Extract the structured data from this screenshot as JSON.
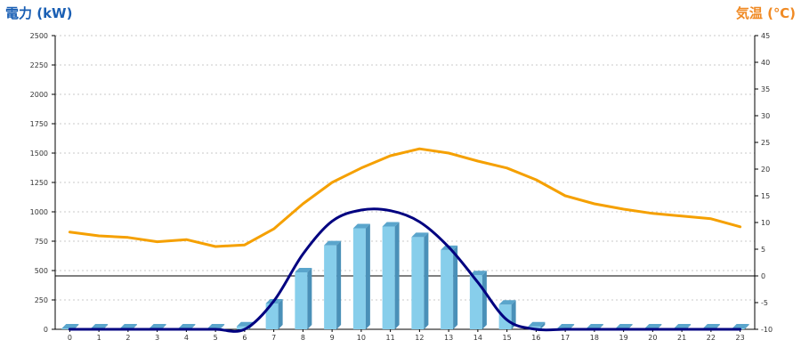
{
  "chart_data": {
    "type": "bar+line",
    "left_axis": {
      "title": "電力 (kW)",
      "title_color": "#1a5fb4",
      "ylim": [
        0,
        2500
      ],
      "ticks": [
        0,
        250,
        500,
        750,
        1000,
        1250,
        1500,
        1750,
        2000,
        2250,
        2500
      ]
    },
    "right_axis": {
      "title": "気温 (℃)",
      "title_color": "#f08a24",
      "ylim": [
        -10,
        45
      ],
      "ticks": [
        -10,
        -5,
        0,
        5,
        10,
        15,
        20,
        25,
        30,
        35,
        40,
        45
      ]
    },
    "categories": [
      "0",
      "1",
      "2",
      "3",
      "4",
      "5",
      "6",
      "7",
      "8",
      "9",
      "10",
      "11",
      "12",
      "13",
      "14",
      "15",
      "16",
      "17",
      "18",
      "19",
      "20",
      "21",
      "22",
      "23"
    ],
    "grid": true,
    "series": [
      {
        "kind": "bar",
        "axis": "left",
        "color": "#87ceeb",
        "values": [
          8,
          8,
          8,
          8,
          8,
          8,
          25,
          220,
          485,
          715,
          860,
          875,
          785,
          675,
          460,
          210,
          25,
          8,
          8,
          8,
          8,
          8,
          8,
          8
        ]
      },
      {
        "kind": "line",
        "axis": "left",
        "color": "#000080",
        "values": [
          0,
          0,
          0,
          0,
          0,
          0,
          0,
          240,
          640,
          920,
          1015,
          1010,
          915,
          700,
          400,
          80,
          0,
          0,
          0,
          0,
          0,
          0,
          0,
          0
        ]
      },
      {
        "kind": "line",
        "axis": "right",
        "color": "#f5a000",
        "values": [
          8.2,
          7.5,
          7.2,
          6.4,
          6.8,
          5.5,
          5.8,
          8.8,
          13.5,
          17.5,
          20.2,
          22.5,
          23.8,
          23.0,
          21.5,
          20.2,
          18.0,
          15.0,
          13.5,
          12.5,
          11.7,
          11.2,
          10.7,
          9.2
        ]
      }
    ]
  }
}
